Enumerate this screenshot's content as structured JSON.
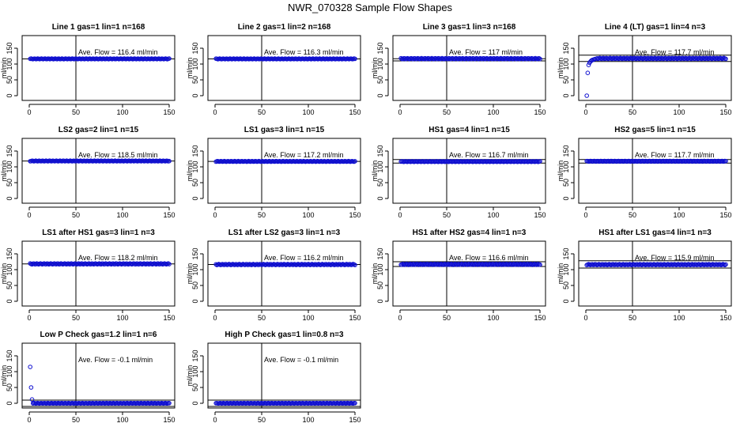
{
  "page": {
    "title": "NWR_070328  Sample Flow Shapes"
  },
  "colors": {
    "points": "#1010d0",
    "axes": "#000000"
  },
  "chart_data": [
    {
      "type": "scatter",
      "title": "Line 1 gas=1 lin=1 n=168",
      "ylabel": "ml/min",
      "xlim": [
        0,
        150
      ],
      "ylim": [
        -15,
        190
      ],
      "xticks": [
        0,
        50,
        100,
        150
      ],
      "yticks": [
        0,
        50,
        100,
        150
      ],
      "grid": false,
      "vline_x": 50,
      "hlines": [
        116.4
      ],
      "annotation": "Ave. Flow =  116.4  ml/min",
      "series": [
        {
          "shape": "flat",
          "x": [
            1,
            150
          ],
          "y_level": 116.4,
          "spread": 2
        }
      ]
    },
    {
      "type": "scatter",
      "title": "Line 2 gas=1 lin=2 n=168",
      "ylabel": "ml/min",
      "xlim": [
        0,
        150
      ],
      "ylim": [
        -15,
        190
      ],
      "xticks": [
        0,
        50,
        100,
        150
      ],
      "yticks": [
        0,
        50,
        100,
        150
      ],
      "grid": false,
      "vline_x": 50,
      "hlines": [
        116.3
      ],
      "annotation": "Ave. Flow =  116.3  ml/min",
      "series": [
        {
          "shape": "flat",
          "x": [
            1,
            150
          ],
          "y_level": 116.3,
          "spread": 2
        }
      ]
    },
    {
      "type": "scatter",
      "title": "Line 3 gas=1 lin=3 n=168",
      "ylabel": "ml/min",
      "xlim": [
        0,
        150
      ],
      "ylim": [
        -15,
        190
      ],
      "xticks": [
        0,
        50,
        100,
        150
      ],
      "yticks": [
        0,
        50,
        100,
        150
      ],
      "grid": false,
      "vline_x": 50,
      "hlines": [
        117,
        110
      ],
      "annotation": "Ave. Flow =  117  ml/min",
      "series": [
        {
          "shape": "flat",
          "x": [
            1,
            150
          ],
          "y_level": 117,
          "spread": 3
        }
      ]
    },
    {
      "type": "scatter",
      "title": "Line 4 (LT) gas=1 lin=4 n=3",
      "ylabel": "ml/min",
      "xlim": [
        0,
        150
      ],
      "ylim": [
        -15,
        190
      ],
      "xticks": [
        0,
        50,
        100,
        150
      ],
      "yticks": [
        0,
        50,
        100,
        150
      ],
      "grid": false,
      "vline_x": 50,
      "hlines": [
        128,
        108
      ],
      "annotation": "Ave. Flow =  117.7  ml/min",
      "series": [
        {
          "shape": "flat",
          "x": [
            12,
            150
          ],
          "y_level": 117.7,
          "spread": 3
        },
        {
          "shape": "points",
          "x": [
            1,
            2,
            3,
            4,
            5,
            6,
            7,
            8,
            9,
            10
          ],
          "y": [
            0,
            72,
            97,
            104,
            108,
            111,
            113,
            114,
            115,
            116
          ]
        }
      ]
    },
    {
      "type": "scatter",
      "title": "LS2 gas=2 lin=1 n=15",
      "ylabel": "ml/min",
      "xlim": [
        0,
        150
      ],
      "ylim": [
        -15,
        190
      ],
      "xticks": [
        0,
        50,
        100,
        150
      ],
      "yticks": [
        0,
        50,
        100,
        150
      ],
      "grid": false,
      "vline_x": 50,
      "hlines": [
        118.5
      ],
      "annotation": "Ave. Flow =  118.5  ml/min",
      "series": [
        {
          "shape": "flat",
          "x": [
            1,
            150
          ],
          "y_level": 118.5,
          "spread": 2
        }
      ]
    },
    {
      "type": "scatter",
      "title": "LS1 gas=3 lin=1 n=15",
      "ylabel": "ml/min",
      "xlim": [
        0,
        150
      ],
      "ylim": [
        -15,
        190
      ],
      "xticks": [
        0,
        50,
        100,
        150
      ],
      "yticks": [
        0,
        50,
        100,
        150
      ],
      "grid": false,
      "vline_x": 50,
      "hlines": [
        117.2
      ],
      "annotation": "Ave. Flow =  117.2  ml/min",
      "series": [
        {
          "shape": "flat",
          "x": [
            1,
            150
          ],
          "y_level": 117.2,
          "spread": 2
        }
      ]
    },
    {
      "type": "scatter",
      "title": "HS1 gas=4 lin=1 n=15",
      "ylabel": "ml/min",
      "xlim": [
        0,
        150
      ],
      "ylim": [
        -15,
        190
      ],
      "xticks": [
        0,
        50,
        100,
        150
      ],
      "yticks": [
        0,
        50,
        100,
        150
      ],
      "grid": false,
      "vline_x": 50,
      "hlines": [
        123,
        112
      ],
      "annotation": "Ave. Flow =  116.7  ml/min",
      "series": [
        {
          "shape": "flat",
          "x": [
            1,
            150
          ],
          "y_level": 116.7,
          "spread": 2
        }
      ]
    },
    {
      "type": "scatter",
      "title": "HS2 gas=5 lin=1 n=15",
      "ylabel": "ml/min",
      "xlim": [
        0,
        150
      ],
      "ylim": [
        -15,
        190
      ],
      "xticks": [
        0,
        50,
        100,
        150
      ],
      "yticks": [
        0,
        50,
        100,
        150
      ],
      "grid": false,
      "vline_x": 50,
      "hlines": [
        123,
        112
      ],
      "annotation": "Ave. Flow =  117.7  ml/min",
      "series": [
        {
          "shape": "flat",
          "x": [
            1,
            150
          ],
          "y_level": 117.7,
          "spread": 2
        }
      ]
    },
    {
      "type": "scatter",
      "title": "LS1 after HS1 gas=3 lin=1 n=3",
      "ylabel": "ml/min",
      "xlim": [
        0,
        150
      ],
      "ylim": [
        -15,
        190
      ],
      "xticks": [
        0,
        50,
        100,
        150
      ],
      "yticks": [
        0,
        50,
        100,
        150
      ],
      "grid": false,
      "vline_x": 50,
      "hlines": [
        118.2
      ],
      "annotation": "Ave. Flow =  118.2  ml/min",
      "series": [
        {
          "shape": "flat",
          "x": [
            1,
            150
          ],
          "y_level": 118.2,
          "spread": 3
        }
      ]
    },
    {
      "type": "scatter",
      "title": "LS1 after LS2 gas=3 lin=1 n=3",
      "ylabel": "ml/min",
      "xlim": [
        0,
        150
      ],
      "ylim": [
        -15,
        190
      ],
      "xticks": [
        0,
        50,
        100,
        150
      ],
      "yticks": [
        0,
        50,
        100,
        150
      ],
      "grid": false,
      "vline_x": 50,
      "hlines": [
        116.2
      ],
      "annotation": "Ave. Flow =  116.2  ml/min",
      "series": [
        {
          "shape": "flat",
          "x": [
            1,
            150
          ],
          "y_level": 116.2,
          "spread": 3
        }
      ]
    },
    {
      "type": "scatter",
      "title": "HS1 after HS2 gas=4 lin=1 n=3",
      "ylabel": "ml/min",
      "xlim": [
        0,
        150
      ],
      "ylim": [
        -15,
        190
      ],
      "xticks": [
        0,
        50,
        100,
        150
      ],
      "yticks": [
        0,
        50,
        100,
        150
      ],
      "grid": false,
      "vline_x": 50,
      "hlines": [
        125,
        110
      ],
      "annotation": "Ave. Flow =  116.6  ml/min",
      "series": [
        {
          "shape": "flat",
          "x": [
            1,
            150
          ],
          "y_level": 116.6,
          "spread": 3
        }
      ]
    },
    {
      "type": "scatter",
      "title": "HS1 after LS1 gas=4 lin=1 n=3",
      "ylabel": "ml/min",
      "xlim": [
        0,
        150
      ],
      "ylim": [
        -15,
        190
      ],
      "xticks": [
        0,
        50,
        100,
        150
      ],
      "yticks": [
        0,
        50,
        100,
        150
      ],
      "grid": false,
      "vline_x": 50,
      "hlines": [
        128,
        105
      ],
      "annotation": "Ave. Flow =  115.9  ml/min",
      "series": [
        {
          "shape": "flat",
          "x": [
            1,
            150
          ],
          "y_level": 115.9,
          "spread": 3
        }
      ]
    },
    {
      "type": "scatter",
      "title": "Low P Check gas=1.2 lin=1 n=6",
      "ylabel": "ml/min",
      "xlim": [
        0,
        150
      ],
      "ylim": [
        -15,
        190
      ],
      "xticks": [
        0,
        50,
        100,
        150
      ],
      "yticks": [
        0,
        50,
        100,
        150
      ],
      "grid": false,
      "vline_x": 50,
      "hlines": [
        10,
        -10
      ],
      "annotation": "Ave. Flow =  -0.1  ml/min",
      "series": [
        {
          "shape": "flat",
          "x": [
            4,
            150
          ],
          "y_level": 0,
          "spread": 1.5
        },
        {
          "shape": "points",
          "x": [
            1,
            2,
            3
          ],
          "y": [
            115,
            50,
            12
          ]
        }
      ]
    },
    {
      "type": "scatter",
      "title": "High P Check gas=1 lin=0.8 n=3",
      "ylabel": "ml/min",
      "xlim": [
        0,
        150
      ],
      "ylim": [
        -15,
        190
      ],
      "xticks": [
        0,
        50,
        100,
        150
      ],
      "yticks": [
        0,
        50,
        100,
        150
      ],
      "grid": false,
      "vline_x": 50,
      "hlines": [
        10,
        -10
      ],
      "annotation": "Ave. Flow =  -0.1  ml/min",
      "series": [
        {
          "shape": "flat",
          "x": [
            1,
            150
          ],
          "y_level": 0,
          "spread": 1.5
        }
      ]
    }
  ]
}
